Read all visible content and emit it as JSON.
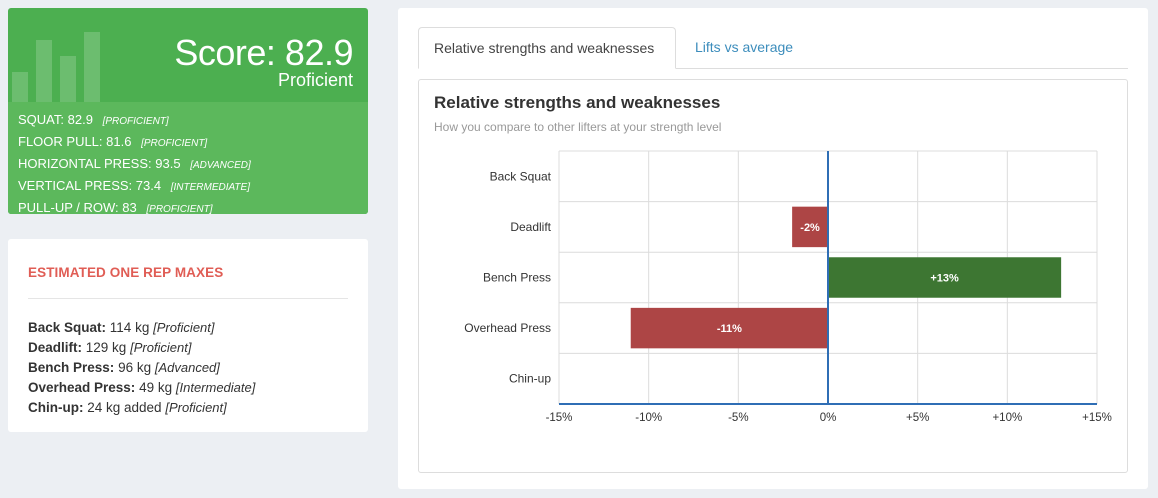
{
  "score_card": {
    "score_text": "Score: 82.9",
    "level": "Proficient",
    "rows": [
      {
        "name": "SQUAT:",
        "value": "82.9",
        "level": "[PROFICIENT]"
      },
      {
        "name": "FLOOR PULL:",
        "value": "81.6",
        "level": "[PROFICIENT]"
      },
      {
        "name": "HORIZONTAL PRESS:",
        "value": "93.5",
        "level": "[ADVANCED]"
      },
      {
        "name": "VERTICAL PRESS:",
        "value": "73.4",
        "level": "[INTERMEDIATE]"
      },
      {
        "name": "PULL-UP / ROW:",
        "value": "83",
        "level": "[PROFICIENT]"
      }
    ]
  },
  "orm_card": {
    "title": "ESTIMATED ONE REP MAXES",
    "rows": [
      {
        "lift": "Back Squat:",
        "value": "114 kg",
        "level": "[Proficient]"
      },
      {
        "lift": "Deadlift:",
        "value": "129 kg",
        "level": "[Proficient]"
      },
      {
        "lift": "Bench Press:",
        "value": "96 kg",
        "level": "[Advanced]"
      },
      {
        "lift": "Overhead Press:",
        "value": "49 kg",
        "level": "[Intermediate]"
      },
      {
        "lift": "Chin-up:",
        "value": "24 kg added",
        "level": "[Proficient]"
      }
    ]
  },
  "tabs": {
    "active": "Relative strengths and weaknesses",
    "other": "Lifts vs average"
  },
  "colors": {
    "positive": "#3d7632",
    "negative": "#ad4545",
    "axis": "#2f6eb5",
    "card_green": "#4caf50"
  },
  "chart_data": {
    "type": "bar",
    "orientation": "horizontal",
    "title": "Relative strengths and weaknesses",
    "subtitle": "How you compare to other lifters at your strength level",
    "categories": [
      "Back Squat",
      "Deadlift",
      "Bench Press",
      "Overhead Press",
      "Chin-up"
    ],
    "values": [
      0,
      -2,
      13,
      -11,
      0
    ],
    "data_labels": [
      "",
      "-2%",
      "+13%",
      "-11%",
      ""
    ],
    "xlim": [
      -15,
      15
    ],
    "x_ticks": [
      -15,
      -10,
      -5,
      0,
      5,
      10,
      15
    ],
    "x_tick_labels": [
      "-15%",
      "-10%",
      "-5%",
      "0%",
      "+5%",
      "+10%",
      "+15%"
    ],
    "grid": true
  }
}
